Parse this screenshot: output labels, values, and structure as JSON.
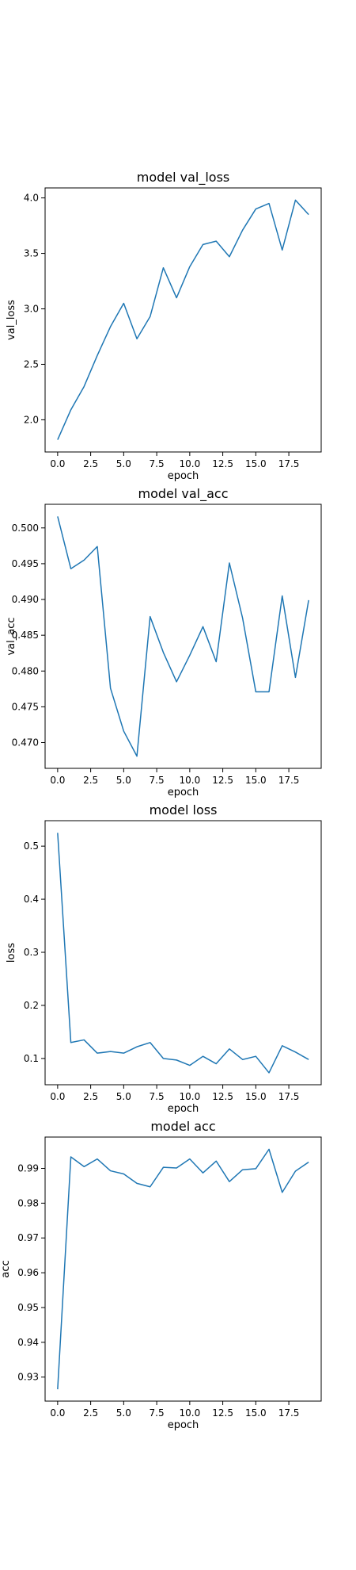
{
  "chart_data": [
    {
      "type": "line",
      "title": "model val_loss",
      "xlabel": "epoch",
      "ylabel": "val_loss",
      "x": [
        0,
        1,
        2,
        3,
        4,
        5,
        6,
        7,
        8,
        9,
        10,
        11,
        12,
        13,
        14,
        15,
        16,
        17,
        18,
        19
      ],
      "series": [
        {
          "values": [
            1.82,
            2.09,
            2.3,
            2.58,
            2.84,
            3.05,
            2.73,
            2.93,
            3.37,
            3.1,
            3.38,
            3.58,
            3.61,
            3.47,
            3.71,
            3.9,
            3.95,
            3.53,
            3.98,
            3.85
          ]
        }
      ],
      "xlim": [
        -0.95,
        19.95
      ],
      "ylim": [
        1.71,
        4.09
      ],
      "xticks": [
        0.0,
        2.5,
        5.0,
        7.5,
        10.0,
        12.5,
        15.0,
        17.5
      ],
      "xtick_labels": [
        "0.0",
        "2.5",
        "5.0",
        "7.5",
        "10.0",
        "12.5",
        "15.0",
        "17.5"
      ],
      "yticks": [
        2.0,
        2.5,
        3.0,
        3.5,
        4.0
      ],
      "ytick_labels": [
        "2.0",
        "2.5",
        "3.0",
        "3.5",
        "4.0"
      ],
      "grid": false,
      "color": "#1f77b4"
    },
    {
      "type": "line",
      "title": "model val_acc",
      "xlabel": "epoch",
      "ylabel": "val_acc",
      "x": [
        0,
        1,
        2,
        3,
        4,
        5,
        6,
        7,
        8,
        9,
        10,
        11,
        12,
        13,
        14,
        15,
        16,
        17,
        18,
        19
      ],
      "series": [
        {
          "values": [
            0.5016,
            0.4943,
            0.4955,
            0.4974,
            0.4776,
            0.4716,
            0.4681,
            0.4876,
            0.4826,
            0.4785,
            0.4822,
            0.4862,
            0.4813,
            0.4951,
            0.4874,
            0.4771,
            0.4771,
            0.4905,
            0.4791,
            0.4899
          ]
        }
      ],
      "xlim": [
        -0.95,
        19.95
      ],
      "ylim": [
        0.4664,
        0.5033
      ],
      "xticks": [
        0.0,
        2.5,
        5.0,
        7.5,
        10.0,
        12.5,
        15.0,
        17.5
      ],
      "xtick_labels": [
        "0.0",
        "2.5",
        "5.0",
        "7.5",
        "10.0",
        "12.5",
        "15.0",
        "17.5"
      ],
      "yticks": [
        0.47,
        0.475,
        0.48,
        0.485,
        0.49,
        0.495,
        0.5
      ],
      "ytick_labels": [
        "0.470",
        "0.475",
        "0.480",
        "0.485",
        "0.490",
        "0.495",
        "0.500"
      ],
      "grid": false,
      "color": "#1f77b4"
    },
    {
      "type": "line",
      "title": "model loss",
      "xlabel": "epoch",
      "ylabel": "loss",
      "x": [
        0,
        1,
        2,
        3,
        4,
        5,
        6,
        7,
        8,
        9,
        10,
        11,
        12,
        13,
        14,
        15,
        16,
        17,
        18,
        19
      ],
      "series": [
        {
          "values": [
            0.525,
            0.13,
            0.135,
            0.11,
            0.113,
            0.11,
            0.122,
            0.13,
            0.1,
            0.097,
            0.087,
            0.104,
            0.09,
            0.118,
            0.098,
            0.104,
            0.073,
            0.124,
            0.112,
            0.098
          ]
        }
      ],
      "xlim": [
        -0.95,
        19.95
      ],
      "ylim": [
        0.0505,
        0.548
      ],
      "xticks": [
        0.0,
        2.5,
        5.0,
        7.5,
        10.0,
        12.5,
        15.0,
        17.5
      ],
      "xtick_labels": [
        "0.0",
        "2.5",
        "5.0",
        "7.5",
        "10.0",
        "12.5",
        "15.0",
        "17.5"
      ],
      "yticks": [
        0.1,
        0.2,
        0.3,
        0.4,
        0.5
      ],
      "ytick_labels": [
        "0.1",
        "0.2",
        "0.3",
        "0.4",
        "0.5"
      ],
      "grid": false,
      "color": "#1f77b4"
    },
    {
      "type": "line",
      "title": "model acc",
      "xlabel": "epoch",
      "ylabel": "acc",
      "x": [
        0,
        1,
        2,
        3,
        4,
        5,
        6,
        7,
        8,
        9,
        10,
        11,
        12,
        13,
        14,
        15,
        16,
        17,
        18,
        19
      ],
      "series": [
        {
          "values": [
            0.9265,
            0.9933,
            0.9905,
            0.9927,
            0.9893,
            0.9884,
            0.9857,
            0.9847,
            0.9903,
            0.9901,
            0.9927,
            0.9887,
            0.9921,
            0.9862,
            0.9896,
            0.9899,
            0.9955,
            0.9831,
            0.9892,
            0.9918
          ]
        }
      ],
      "xlim": [
        -0.95,
        19.95
      ],
      "ylim": [
        0.9231,
        0.999
      ],
      "xticks": [
        0.0,
        2.5,
        5.0,
        7.5,
        10.0,
        12.5,
        15.0,
        17.5
      ],
      "xtick_labels": [
        "0.0",
        "2.5",
        "5.0",
        "7.5",
        "10.0",
        "12.5",
        "15.0",
        "17.5"
      ],
      "yticks": [
        0.93,
        0.94,
        0.95,
        0.96,
        0.97,
        0.98,
        0.99
      ],
      "ytick_labels": [
        "0.93",
        "0.94",
        "0.95",
        "0.96",
        "0.97",
        "0.98",
        "0.99"
      ],
      "grid": false,
      "color": "#1f77b4"
    }
  ]
}
